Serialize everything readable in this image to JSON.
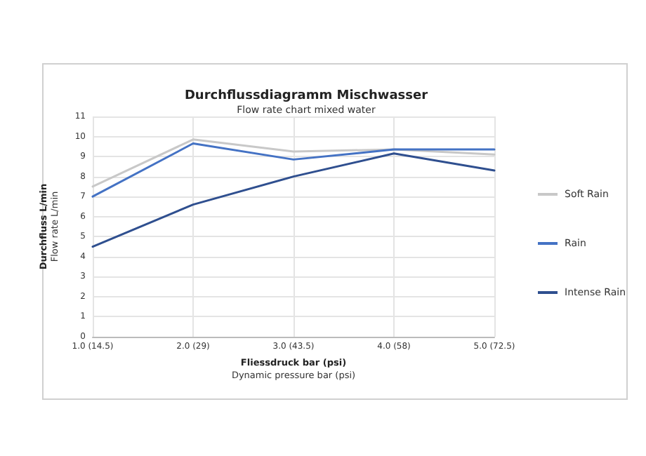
{
  "chart_data": {
    "type": "line",
    "title": "Durchflussdiagramm Mischwasser",
    "subtitle": "Flow rate chart mixed water",
    "xlabel": "Fliessdruck bar (psi)\nDynamic pressure bar (psi)",
    "ylabel": "Durchfluss L/min\nFlow rate L/min",
    "categories": [
      "1.0 (14.5)",
      "2.0 (29)",
      "3.0 (43.5)",
      "4.0 (58)",
      "5.0 (72.5)"
    ],
    "series": [
      {
        "name": "Soft Rain",
        "color": "#c8c8c8",
        "values": [
          7.5,
          9.85,
          9.25,
          9.35,
          9.1
        ]
      },
      {
        "name": "Rain",
        "color": "#4472c4",
        "values": [
          7.0,
          9.65,
          8.85,
          9.35,
          9.35
        ]
      },
      {
        "name": "Intense Rain",
        "color": "#2f4f8f",
        "values": [
          4.5,
          6.6,
          8.0,
          9.15,
          8.3
        ]
      }
    ],
    "ylim": [
      0,
      11
    ],
    "yticks": [
      0,
      1,
      2,
      3,
      4,
      5,
      6,
      7,
      8,
      9,
      10,
      11
    ],
    "grid": true,
    "legend": "right",
    "marker": "none",
    "line_style": "solid"
  }
}
